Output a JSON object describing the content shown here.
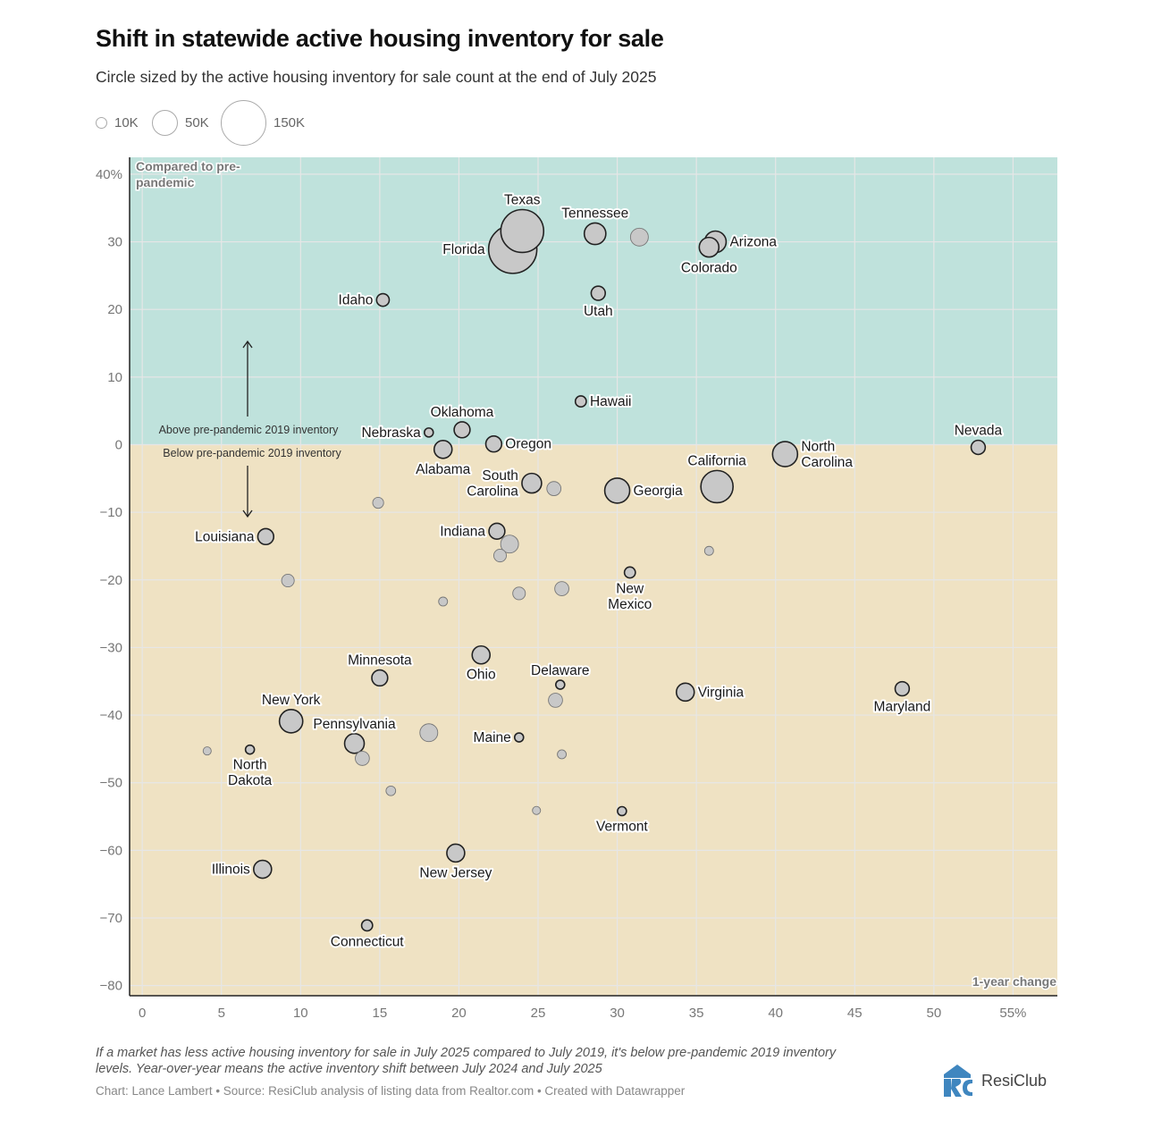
{
  "header": {
    "title": "Shift in statewide active housing inventory for sale",
    "subtitle": "Circle sized by the active housing inventory for sale count at the end of July 2025"
  },
  "size_legend": [
    {
      "label": "10K",
      "value": 10000
    },
    {
      "label": "50K",
      "value": 50000
    },
    {
      "label": "150K",
      "value": 150000
    }
  ],
  "colors": {
    "above_bg": "#bfe2dc",
    "below_bg": "#efe2c3",
    "circle_fill": "#c8c8c8",
    "circle_stroke_labeled": "#222222",
    "circle_stroke_unlabeled": "#777777",
    "grid": "#e6e6e6"
  },
  "chart_data": {
    "type": "scatter",
    "subtype": "bubble",
    "title": "Shift in statewide active housing inventory for sale",
    "xlabel": "1-year change",
    "ylabel": "Compared to pre-pandemic",
    "xlim": [
      -0.8,
      57.8
    ],
    "ylim": [
      -81.5,
      42.5
    ],
    "x_ticks": [
      0,
      5,
      10,
      15,
      20,
      25,
      30,
      35,
      40,
      45,
      50,
      55
    ],
    "x_tick_labels": [
      "0",
      "5",
      "10",
      "15",
      "20",
      "25",
      "30",
      "35",
      "40",
      "45",
      "50",
      "55%"
    ],
    "y_ticks": [
      40,
      30,
      20,
      10,
      0,
      -10,
      -20,
      -30,
      -40,
      -50,
      -60,
      -70,
      -80
    ],
    "y_tick_labels": [
      "40%",
      "30",
      "20",
      "10",
      "0",
      "−10",
      "−20",
      "−30",
      "−40",
      "−50",
      "−60",
      "−70",
      "−80"
    ],
    "grid": true,
    "size_unit": "active listings",
    "region_labels": {
      "above": "Above pre-pandemic 2019 inventory",
      "below": "Below pre-pandemic 2019 inventory"
    },
    "points": [
      {
        "name": "Texas",
        "x": 24.0,
        "y": 31.6,
        "size": 138000,
        "label": "Texas",
        "pos": "top"
      },
      {
        "name": "Florida",
        "x": 23.4,
        "y": 28.9,
        "size": 175000,
        "label": "Florida",
        "pos": "left"
      },
      {
        "name": "Tennessee",
        "x": 28.6,
        "y": 31.2,
        "size": 35000,
        "label": "Tennessee",
        "pos": "top"
      },
      {
        "name": "",
        "x": 31.4,
        "y": 30.7,
        "size": 24000,
        "label": "",
        "pos": ""
      },
      {
        "name": "Arizona",
        "x": 36.2,
        "y": 30.0,
        "size": 35000,
        "label": "Arizona",
        "pos": "right"
      },
      {
        "name": "Colorado",
        "x": 35.8,
        "y": 29.2,
        "size": 29000,
        "label": "Colorado",
        "pos": "bottom"
      },
      {
        "name": "Idaho",
        "x": 15.2,
        "y": 21.4,
        "size": 12000,
        "label": "Idaho",
        "pos": "left"
      },
      {
        "name": "Utah",
        "x": 28.8,
        "y": 22.4,
        "size": 15000,
        "label": "Utah",
        "pos": "bottom"
      },
      {
        "name": "Hawaii",
        "x": 27.7,
        "y": 6.4,
        "size": 9000,
        "label": "Hawaii",
        "pos": "right"
      },
      {
        "name": "Oklahoma",
        "x": 20.2,
        "y": 2.2,
        "size": 19000,
        "label": "Oklahoma",
        "pos": "top"
      },
      {
        "name": "Nebraska",
        "x": 18.1,
        "y": 1.8,
        "size": 6000,
        "label": "Nebraska",
        "pos": "left"
      },
      {
        "name": "Alabama",
        "x": 19.0,
        "y": -0.7,
        "size": 24000,
        "label": "Alabama",
        "pos": "bottom"
      },
      {
        "name": "Oregon",
        "x": 22.2,
        "y": 0.1,
        "size": 19000,
        "label": "Oregon",
        "pos": "right"
      },
      {
        "name": "Nevada",
        "x": 52.8,
        "y": -0.4,
        "size": 15000,
        "label": "Nevada",
        "pos": "top"
      },
      {
        "name": "North Carolina",
        "x": 40.6,
        "y": -1.4,
        "size": 47000,
        "label": "North|Carolina",
        "pos": "right"
      },
      {
        "name": "California",
        "x": 36.3,
        "y": -6.2,
        "size": 78000,
        "label": "California",
        "pos": "top"
      },
      {
        "name": "Georgia",
        "x": 30.0,
        "y": -6.8,
        "size": 47000,
        "label": "Georgia",
        "pos": "right"
      },
      {
        "name": "South Carolina",
        "x": 24.6,
        "y": -5.7,
        "size": 29000,
        "label": "South|Carolina",
        "pos": "left"
      },
      {
        "name": "",
        "x": 26.0,
        "y": -6.5,
        "size": 15000,
        "label": "",
        "pos": ""
      },
      {
        "name": "",
        "x": 14.9,
        "y": -8.6,
        "size": 9000,
        "label": "",
        "pos": ""
      },
      {
        "name": "Louisiana",
        "x": 7.8,
        "y": -13.6,
        "size": 19000,
        "label": "Louisiana",
        "pos": "left"
      },
      {
        "name": "Indiana",
        "x": 22.4,
        "y": -12.8,
        "size": 19000,
        "label": "Indiana",
        "pos": "left"
      },
      {
        "name": "",
        "x": 23.2,
        "y": -14.7,
        "size": 24000,
        "label": "",
        "pos": ""
      },
      {
        "name": "",
        "x": 22.6,
        "y": -16.4,
        "size": 12000,
        "label": "",
        "pos": ""
      },
      {
        "name": "",
        "x": 35.8,
        "y": -15.7,
        "size": 6000,
        "label": "",
        "pos": ""
      },
      {
        "name": "New Mexico",
        "x": 30.8,
        "y": -18.9,
        "size": 9000,
        "label": "New|Mexico",
        "pos": "bottom"
      },
      {
        "name": "",
        "x": 9.2,
        "y": -20.1,
        "size": 12000,
        "label": "",
        "pos": ""
      },
      {
        "name": "",
        "x": 26.5,
        "y": -21.3,
        "size": 15000,
        "label": "",
        "pos": ""
      },
      {
        "name": "",
        "x": 23.8,
        "y": -22.0,
        "size": 12000,
        "label": "",
        "pos": ""
      },
      {
        "name": "",
        "x": 19.0,
        "y": -23.2,
        "size": 6000,
        "label": "",
        "pos": ""
      },
      {
        "name": "Ohio",
        "x": 21.4,
        "y": -31.1,
        "size": 24000,
        "label": "Ohio",
        "pos": "bottom"
      },
      {
        "name": "Minnesota",
        "x": 15.0,
        "y": -34.5,
        "size": 19000,
        "label": "Minnesota",
        "pos": "top"
      },
      {
        "name": "Delaware",
        "x": 26.4,
        "y": -35.5,
        "size": 6000,
        "label": "Delaware",
        "pos": "top"
      },
      {
        "name": "",
        "x": 26.1,
        "y": -37.8,
        "size": 15000,
        "label": "",
        "pos": ""
      },
      {
        "name": "Virginia",
        "x": 34.3,
        "y": -36.6,
        "size": 24000,
        "label": "Virginia",
        "pos": "right"
      },
      {
        "name": "Maryland",
        "x": 48.0,
        "y": -36.1,
        "size": 15000,
        "label": "Maryland",
        "pos": "bottom"
      },
      {
        "name": "New York",
        "x": 9.4,
        "y": -40.9,
        "size": 41000,
        "label": "New York",
        "pos": "top"
      },
      {
        "name": "",
        "x": 18.1,
        "y": -42.6,
        "size": 24000,
        "label": "",
        "pos": ""
      },
      {
        "name": "Pennsylvania",
        "x": 13.4,
        "y": -44.2,
        "size": 29000,
        "label": "Pennsylvania",
        "pos": "top"
      },
      {
        "name": "Maine",
        "x": 23.8,
        "y": -43.3,
        "size": 6000,
        "label": "Maine",
        "pos": "left"
      },
      {
        "name": "",
        "x": 4.1,
        "y": -45.3,
        "size": 5000,
        "label": "",
        "pos": ""
      },
      {
        "name": "North Dakota",
        "x": 6.8,
        "y": -45.1,
        "size": 6000,
        "label": "North|Dakota",
        "pos": "bottom"
      },
      {
        "name": "",
        "x": 13.9,
        "y": -46.4,
        "size": 15000,
        "label": "",
        "pos": ""
      },
      {
        "name": "",
        "x": 26.5,
        "y": -45.8,
        "size": 6000,
        "label": "",
        "pos": ""
      },
      {
        "name": "",
        "x": 15.7,
        "y": -51.2,
        "size": 7000,
        "label": "",
        "pos": ""
      },
      {
        "name": "",
        "x": 24.9,
        "y": -54.1,
        "size": 5000,
        "label": "",
        "pos": ""
      },
      {
        "name": "Vermont",
        "x": 30.3,
        "y": -54.2,
        "size": 6000,
        "label": "Vermont",
        "pos": "bottom"
      },
      {
        "name": "New Jersey",
        "x": 19.8,
        "y": -60.4,
        "size": 24000,
        "label": "New Jersey",
        "pos": "bottom"
      },
      {
        "name": "Illinois",
        "x": 7.6,
        "y": -62.8,
        "size": 24000,
        "label": "Illinois",
        "pos": "left"
      },
      {
        "name": "Connecticut",
        "x": 14.2,
        "y": -71.1,
        "size": 9000,
        "label": "Connecticut",
        "pos": "bottom"
      }
    ]
  },
  "footer": {
    "note_line1": "If a market has less active housing inventory for sale in July 2025 compared to July 2019, it's below pre-pandemic 2019 inventory",
    "note_line2": "levels. Year-over-year means the active inventory shift between July 2024 and July 2025",
    "credits": "Chart: Lance Lambert • Source: ResiClub analysis of listing data from Realtor.com • Created with Datawrapper",
    "logo_text": "ResiClub"
  }
}
